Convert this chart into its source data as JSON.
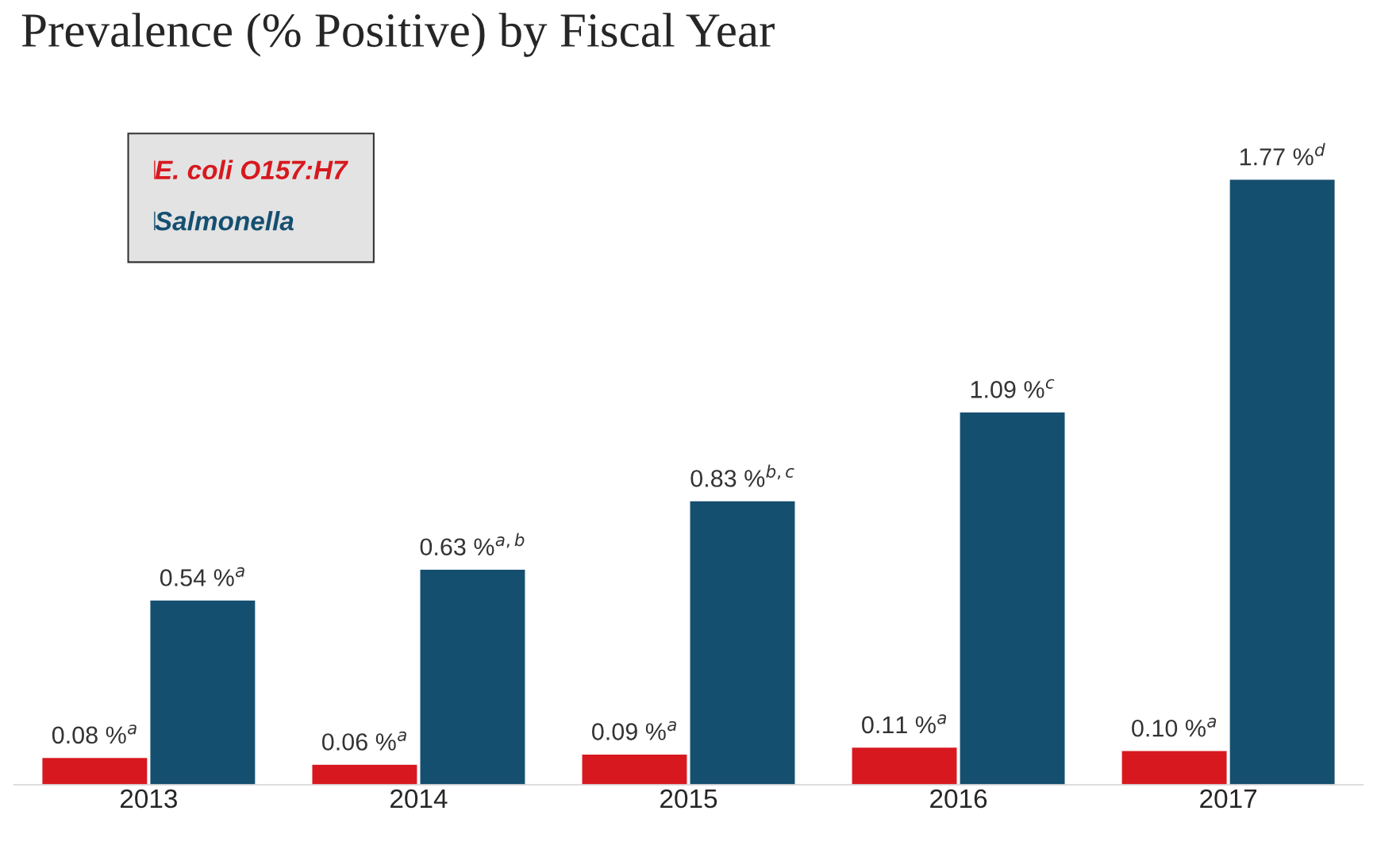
{
  "chart_data": {
    "type": "bar",
    "title": "Prevalence (% Positive) by Fiscal Year",
    "categories": [
      "2013",
      "2014",
      "2015",
      "2016",
      "2017"
    ],
    "series": [
      {
        "name": "E. coli O157:H7",
        "color": "#d7191f",
        "values": [
          0.08,
          0.06,
          0.09,
          0.11,
          0.1
        ],
        "value_labels": [
          "0.08 %$^{a}$",
          "0.06 %$^{a}$",
          "0.09 %$^{a}$",
          "0.11 %$^{a}$",
          "0.10 %$^{a}$"
        ]
      },
      {
        "name": "Salmonella",
        "color": "#154f70",
        "values": [
          0.54,
          0.63,
          0.83,
          1.09,
          1.77
        ],
        "value_labels": [
          "0.54 %$^{a}$",
          "0.63 %$^{a,b}$",
          "0.83 %$^{b,c}$",
          "1.09 %$^{c}$",
          "1.77 %$^{d}$"
        ]
      }
    ],
    "legend": "top left",
    "grid": false
  }
}
